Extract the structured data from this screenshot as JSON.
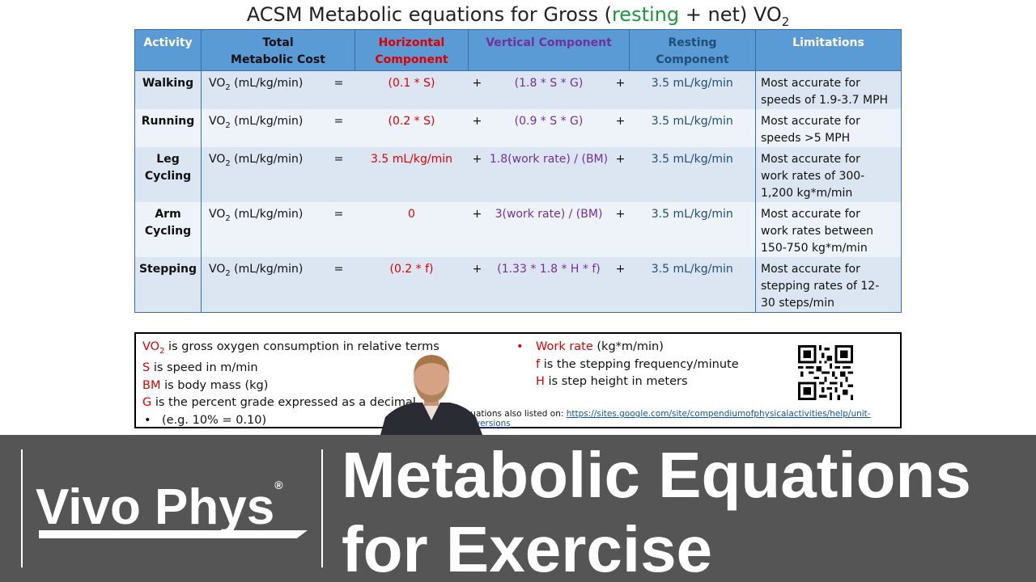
{
  "slide": {
    "title_parts": {
      "pre": "ACSM Metabolic equations for Gross (",
      "resting": "resting",
      "mid": " + net) VO",
      "sub": "2"
    },
    "headers": {
      "activity": "Activity",
      "total_line1": "Total",
      "total_line2": "Metabolic Cost",
      "horizontal_line1": "Horizontal",
      "horizontal_line2": "Component",
      "vertical": "Vertical Component",
      "resting_line1": "Resting",
      "resting_line2": "Component",
      "limitations": "Limitations"
    },
    "rows": [
      {
        "activity_1": "Walking",
        "activity_2": "",
        "vo2": "VO",
        "vo2_sub": "2",
        "vo2_unit": " (mL/kg/min)",
        "eq": "=",
        "horizontal": "(0.1 * S)",
        "plus1": "+",
        "vertical": "(1.8 * S * G)",
        "plus2": "+",
        "resting": "3.5 mL/kg/min",
        "lim_1": "Most accurate for",
        "lim_2": "speeds of 1.9-3.7 MPH",
        "lim_3": ""
      },
      {
        "activity_1": "Running",
        "activity_2": "",
        "vo2": "VO",
        "vo2_sub": "2",
        "vo2_unit": " (mL/kg/min)",
        "eq": "=",
        "horizontal": "(0.2 * S)",
        "plus1": "+",
        "vertical": "(0.9 * S * G)",
        "plus2": "+",
        "resting": "3.5 mL/kg/min",
        "lim_1": "Most accurate for",
        "lim_2": "speeds >5 MPH",
        "lim_3": ""
      },
      {
        "activity_1": "Leg",
        "activity_2": "Cycling",
        "vo2": "VO",
        "vo2_sub": "2",
        "vo2_unit": " (mL/kg/min)",
        "eq": "=",
        "horizontal": "3.5 mL/kg/min",
        "plus1": "+",
        "vertical": "1.8(work rate) / (BM)",
        "plus2": "+",
        "resting": "3.5 mL/kg/min",
        "lim_1": "Most accurate for",
        "lim_2": "work rates of 300-",
        "lim_3": "1,200 kg*m/min"
      },
      {
        "activity_1": "Arm",
        "activity_2": "Cycling",
        "vo2": "VO",
        "vo2_sub": "2",
        "vo2_unit": " (mL/kg/min)",
        "eq": "=",
        "horizontal": "0",
        "plus1": "+",
        "vertical": "3(work rate) / (BM)",
        "plus2": "+",
        "resting": "3.5 mL/kg/min",
        "lim_1": "Most accurate for",
        "lim_2": "work rates between",
        "lim_3": "150-750 kg*m/min"
      },
      {
        "activity_1": "Stepping",
        "activity_2": "",
        "vo2": "VO",
        "vo2_sub": "2",
        "vo2_unit": " (mL/kg/min)",
        "eq": "=",
        "horizontal": "(0.2 * f)",
        "plus1": "+",
        "vertical": "(1.33 * 1.8 * H * f)",
        "plus2": "+",
        "resting": "3.5 mL/kg/min",
        "lim_1": "Most accurate for",
        "lim_2": "stepping rates of 12-",
        "lim_3": "30 steps/min"
      }
    ],
    "legend": {
      "vo2_sym": "VO",
      "vo2_sub": "2",
      "vo2_text": " is gross oxygen consumption in relative terms",
      "s_sym": "S",
      "s_text": " is speed in m/min",
      "bm_sym": "BM",
      "bm_text": " is body mass (kg)",
      "g_sym": "G",
      "g_text": " is the percent grade expressed as a decimal",
      "example_bullet": "•",
      "example_text": "(e.g. 10% = 0.10)",
      "work_bullet": "•",
      "work_sym": "Work rate",
      "work_text": " (kg*m/min)",
      "f_sym": "f",
      "f_text": " is the stepping frequency/minute",
      "h_sym": "H",
      "h_text": " is step height in meters",
      "link_prefix": "Equations also listed on: ",
      "link_url": "https://sites.google.com/site/compendiumofphysicalactivities/help/unit-conversions"
    }
  },
  "banner": {
    "logo": "Vivo Phys",
    "logo_mark": "®",
    "title_line1": "Metabolic Equations",
    "title_line2": "for Exercise"
  },
  "colors": {
    "header_blue": "#5b9bd5",
    "row_light": "#dce6f2",
    "horizontal_red": "#dd0000",
    "vertical_purple": "#7030a0",
    "resting_navy": "#1f4e79",
    "resting_green": "#1a9a3a",
    "banner_gray": "#555555"
  }
}
